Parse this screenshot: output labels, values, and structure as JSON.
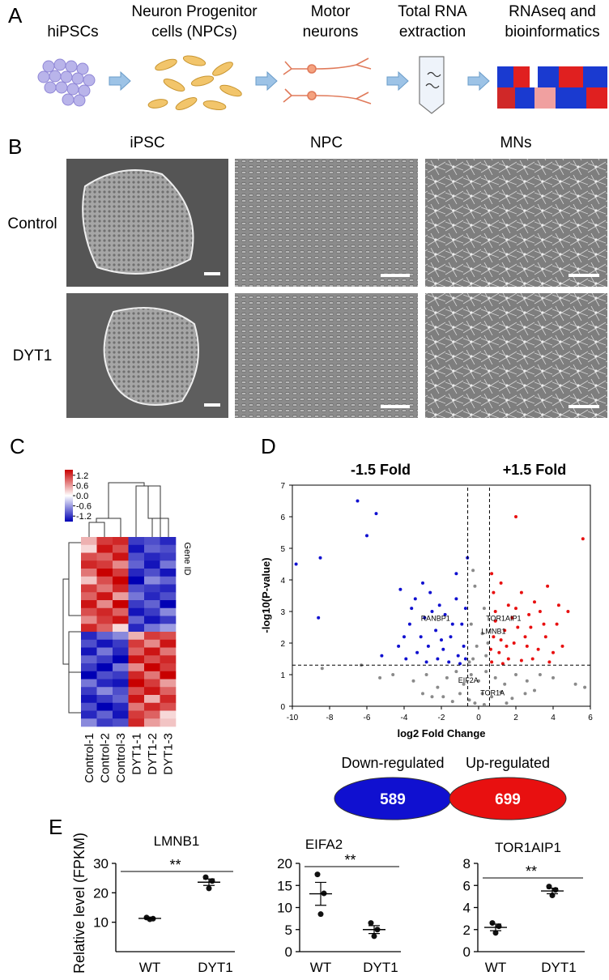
{
  "panel_a": {
    "label": "A",
    "steps": [
      {
        "lines": [
          "hiPSCs"
        ]
      },
      {
        "lines": [
          "Neuron Progenitor",
          "cells (NPCs)"
        ]
      },
      {
        "lines": [
          "Motor",
          "neurons"
        ]
      },
      {
        "lines": [
          "Total RNA",
          "extraction"
        ]
      },
      {
        "lines": [
          "RNAseq and",
          "bioinformatics"
        ]
      }
    ]
  },
  "panel_b": {
    "label": "B",
    "columns": [
      "iPSC",
      "NPC",
      "MNs"
    ],
    "rows": [
      "Control",
      "DYT1"
    ]
  },
  "panel_c": {
    "label": "C",
    "legend_ticks": [
      1.2,
      0.6,
      {
        "value": 0,
        "label": "0.0"
      },
      -0.6,
      -1.2
    ],
    "samples": [
      "Control-1",
      "Control-2",
      "Control-3",
      "DYT1-1",
      "DYT1-2",
      "DYT1-3"
    ],
    "axis_label": "Gene ID",
    "matrix": [
      [
        0.4,
        1.0,
        1.1,
        -1.0,
        -0.9,
        -1.1
      ],
      [
        0.2,
        1.2,
        0.9,
        -1.2,
        -0.8,
        -0.9
      ],
      [
        0.9,
        0.8,
        1.2,
        -0.9,
        -1.1,
        -1.0
      ],
      [
        1.1,
        1.0,
        0.6,
        -0.8,
        -1.2,
        -0.7
      ],
      [
        0.7,
        1.3,
        1.0,
        -1.1,
        -0.9,
        -1.2
      ],
      [
        0.3,
        0.9,
        1.3,
        -1.3,
        -0.6,
        -0.8
      ],
      [
        1.0,
        0.7,
        1.1,
        -0.9,
        -1.0,
        -1.1
      ],
      [
        0.8,
        1.2,
        0.5,
        -0.7,
        -1.1,
        -0.9
      ],
      [
        1.2,
        0.6,
        1.3,
        -1.0,
        -0.8,
        -1.3
      ],
      [
        0.9,
        1.1,
        0.8,
        -1.2,
        -1.0,
        -0.6
      ],
      [
        0.6,
        1.0,
        1.2,
        -0.8,
        -1.2,
        -1.0
      ],
      [
        1.1,
        0.8,
        0.2,
        -1.1,
        -0.7,
        -0.5
      ],
      [
        -1.1,
        -0.8,
        -0.6,
        0.4,
        1.0,
        0.9
      ],
      [
        -0.9,
        -1.2,
        -1.0,
        1.0,
        0.6,
        1.2
      ],
      [
        -1.2,
        -0.7,
        -1.1,
        0.8,
        1.2,
        0.7
      ],
      [
        -0.8,
        -1.0,
        -1.3,
        1.2,
        0.9,
        1.1
      ],
      [
        -1.0,
        -1.3,
        -0.7,
        0.6,
        1.3,
        1.0
      ],
      [
        -1.3,
        -0.9,
        -1.0,
        1.1,
        0.7,
        1.3
      ],
      [
        -0.7,
        -1.1,
        -1.2,
        1.3,
        1.0,
        0.5
      ],
      [
        -1.0,
        -0.6,
        -0.9,
        0.9,
        1.2,
        0.8
      ],
      [
        -1.2,
        -1.0,
        -0.8,
        1.2,
        0.4,
        1.1
      ],
      [
        -0.9,
        -1.3,
        -1.1,
        0.7,
        1.1,
        0.9
      ],
      [
        -1.1,
        -0.8,
        -1.2,
        1.0,
        0.8,
        0.2
      ],
      [
        -0.6,
        -1.0,
        -0.9,
        1.1,
        0.5,
        0.3
      ]
    ]
  },
  "chart_data": [
    {
      "type": "scatter",
      "panel_label": "D",
      "xlabel": "log2 Fold Change",
      "ylabel": "-log10(P-value)",
      "xlim": [
        -10,
        6
      ],
      "xticks": [
        -10,
        -8,
        -6,
        -4,
        -2,
        0,
        2,
        4,
        6
      ],
      "ylim": [
        0,
        7
      ],
      "yticks": [
        0,
        1,
        2,
        3,
        4,
        5,
        6,
        7
      ],
      "annotations": [
        "-1.5 Fold",
        "+1.5 Fold"
      ],
      "thresholds": {
        "x": [
          -0.585,
          0.585
        ],
        "y": 1.3
      },
      "gene_labels": [
        {
          "text": "RANBP1",
          "x": -3.1,
          "y": 2.7
        },
        {
          "text": "TOR1AIP1",
          "x": 0.4,
          "y": 2.7
        },
        {
          "text": "LMNB1",
          "x": 0.15,
          "y": 2.3
        },
        {
          "text": "EIF2A",
          "x": -1.1,
          "y": 0.75
        },
        {
          "text": "TOR1A",
          "x": 0.1,
          "y": 0.35
        }
      ],
      "series": [
        {
          "name": "Down-regulated",
          "count": 589,
          "color": "#1010d0",
          "x": [
            -6.5,
            -5.5,
            -6.0,
            -8.5,
            -9.8,
            -0.6,
            -8.6,
            -5.2,
            -4.3,
            -4.2,
            -3.4,
            -3.0,
            -2.6,
            -2.1,
            -1.8,
            -1.2,
            -0.9,
            -3.7,
            -3.1,
            -2.7,
            -2.3,
            -1.9,
            -1.5,
            -1.1,
            -0.8,
            -3.9,
            -3.3,
            -2.8,
            -2.2,
            -1.6,
            -1.0,
            -0.7,
            -2.9,
            -2.5,
            -1.4,
            -0.7,
            -4.0,
            -1.2,
            -3.6,
            -2.0
          ],
          "y": [
            6.5,
            6.1,
            5.4,
            4.7,
            4.5,
            4.7,
            2.8,
            1.6,
            1.9,
            3.7,
            3.4,
            3.9,
            3.6,
            3.2,
            2.9,
            3.4,
            2.6,
            2.6,
            2.2,
            1.9,
            2.4,
            1.8,
            2.2,
            1.6,
            1.9,
            1.5,
            1.7,
            1.4,
            1.5,
            1.4,
            1.35,
            1.5,
            2.8,
            3.0,
            2.6,
            3.1,
            2.2,
            4.2,
            3.1,
            2.1
          ]
        },
        {
          "name": "Up-regulated",
          "count": 699,
          "color": "#e81010",
          "x": [
            2.0,
            5.6,
            0.7,
            3.7,
            1.2,
            2.3,
            3.0,
            1.6,
            0.9,
            2.7,
            3.5,
            4.2,
            1.4,
            2.1,
            0.8,
            1.9,
            2.6,
            3.2,
            4.0,
            1.1,
            1.6,
            2.3,
            2.9,
            0.7,
            1.3,
            3.6,
            4.5,
            0.9,
            1.8,
            2.5,
            3.3,
            4.3,
            0.65,
            2.0,
            1.5,
            3.8,
            4.8,
            0.8,
            2.8,
            1.2
          ],
          "y": [
            6.0,
            5.3,
            4.2,
            3.8,
            3.9,
            3.6,
            3.3,
            3.2,
            3.0,
            2.9,
            2.6,
            2.6,
            2.4,
            2.5,
            2.2,
            2.0,
            1.9,
            1.8,
            1.7,
            1.7,
            1.5,
            1.45,
            1.5,
            1.4,
            1.35,
            2.2,
            1.9,
            2.7,
            2.8,
            2.2,
            3.0,
            3.2,
            1.8,
            3.1,
            1.9,
            1.4,
            3.0,
            3.6,
            2.5,
            2.1
          ]
        },
        {
          "color": "#8a8a8a",
          "x": [
            -0.3,
            -0.2,
            -0.4,
            0.3,
            0.2,
            -0.1,
            0.4,
            -0.5,
            0.5,
            -0.3,
            -4.6,
            -3.5,
            -2.8,
            -2.2,
            -1.7,
            -1.2,
            -0.8,
            -0.4,
            0.0,
            0.4,
            0.9,
            1.4,
            2.0,
            2.6,
            3.3,
            4.0,
            -1.9,
            -1.0,
            -0.5,
            0.2,
            0.7,
            1.2,
            1.8,
            -2.5,
            2.5,
            -6.3,
            -5.3,
            5.2,
            5.7,
            -8.4,
            -0.2,
            0.3,
            -1.4,
            1.5,
            3.0,
            -3.0
          ],
          "y": [
            4.3,
            3.8,
            2.6,
            3.1,
            2.3,
            1.9,
            1.6,
            1.4,
            2.0,
            1.5,
            1.0,
            0.8,
            1.0,
            0.6,
            0.9,
            1.1,
            0.7,
            1.0,
            0.8,
            1.1,
            0.9,
            0.7,
            1.0,
            0.8,
            1.0,
            0.9,
            0.3,
            0.4,
            0.2,
            0.4,
            0.3,
            0.45,
            0.25,
            0.3,
            0.4,
            1.3,
            0.9,
            0.7,
            0.6,
            1.2,
            0.1,
            0.05,
            0.15,
            0.1,
            0.5,
            0.4
          ]
        }
      ]
    },
    {
      "type": "dot",
      "panel_label": "E",
      "title": "LMNB1",
      "ylabel": "Relative level (FPKM)",
      "annotation": "**",
      "categories": [
        "WT",
        "DYT1"
      ],
      "ylim": [
        0,
        30
      ],
      "yticks": [
        10,
        20,
        30
      ],
      "values": [
        [
          11.6,
          11.2,
          11.0
        ],
        [
          25.3,
          24.0,
          21.5
        ]
      ],
      "means": [
        11.3,
        23.6
      ],
      "sem": [
        0.2,
        1.1
      ]
    },
    {
      "type": "dot",
      "title": "EIFA2",
      "annotation": "**",
      "categories": [
        "WT",
        "DYT1"
      ],
      "ylim": [
        0,
        20
      ],
      "yticks": [
        0,
        5,
        10,
        15,
        20
      ],
      "values": [
        [
          17.5,
          13.2,
          8.5
        ],
        [
          6.5,
          5.0,
          3.5
        ]
      ],
      "means": [
        13.1,
        5.0
      ],
      "sem": [
        2.6,
        0.9
      ]
    },
    {
      "type": "dot",
      "title": "TOR1AIP1",
      "annotation": "**",
      "categories": [
        "WT",
        "DYT1"
      ],
      "ylim": [
        0,
        8
      ],
      "yticks": [
        0,
        2,
        4,
        6,
        8
      ],
      "values": [
        [
          2.6,
          2.3,
          1.7
        ],
        [
          5.9,
          5.6,
          5.1
        ]
      ],
      "means": [
        2.2,
        5.5
      ],
      "sem": [
        0.3,
        0.25
      ]
    }
  ]
}
